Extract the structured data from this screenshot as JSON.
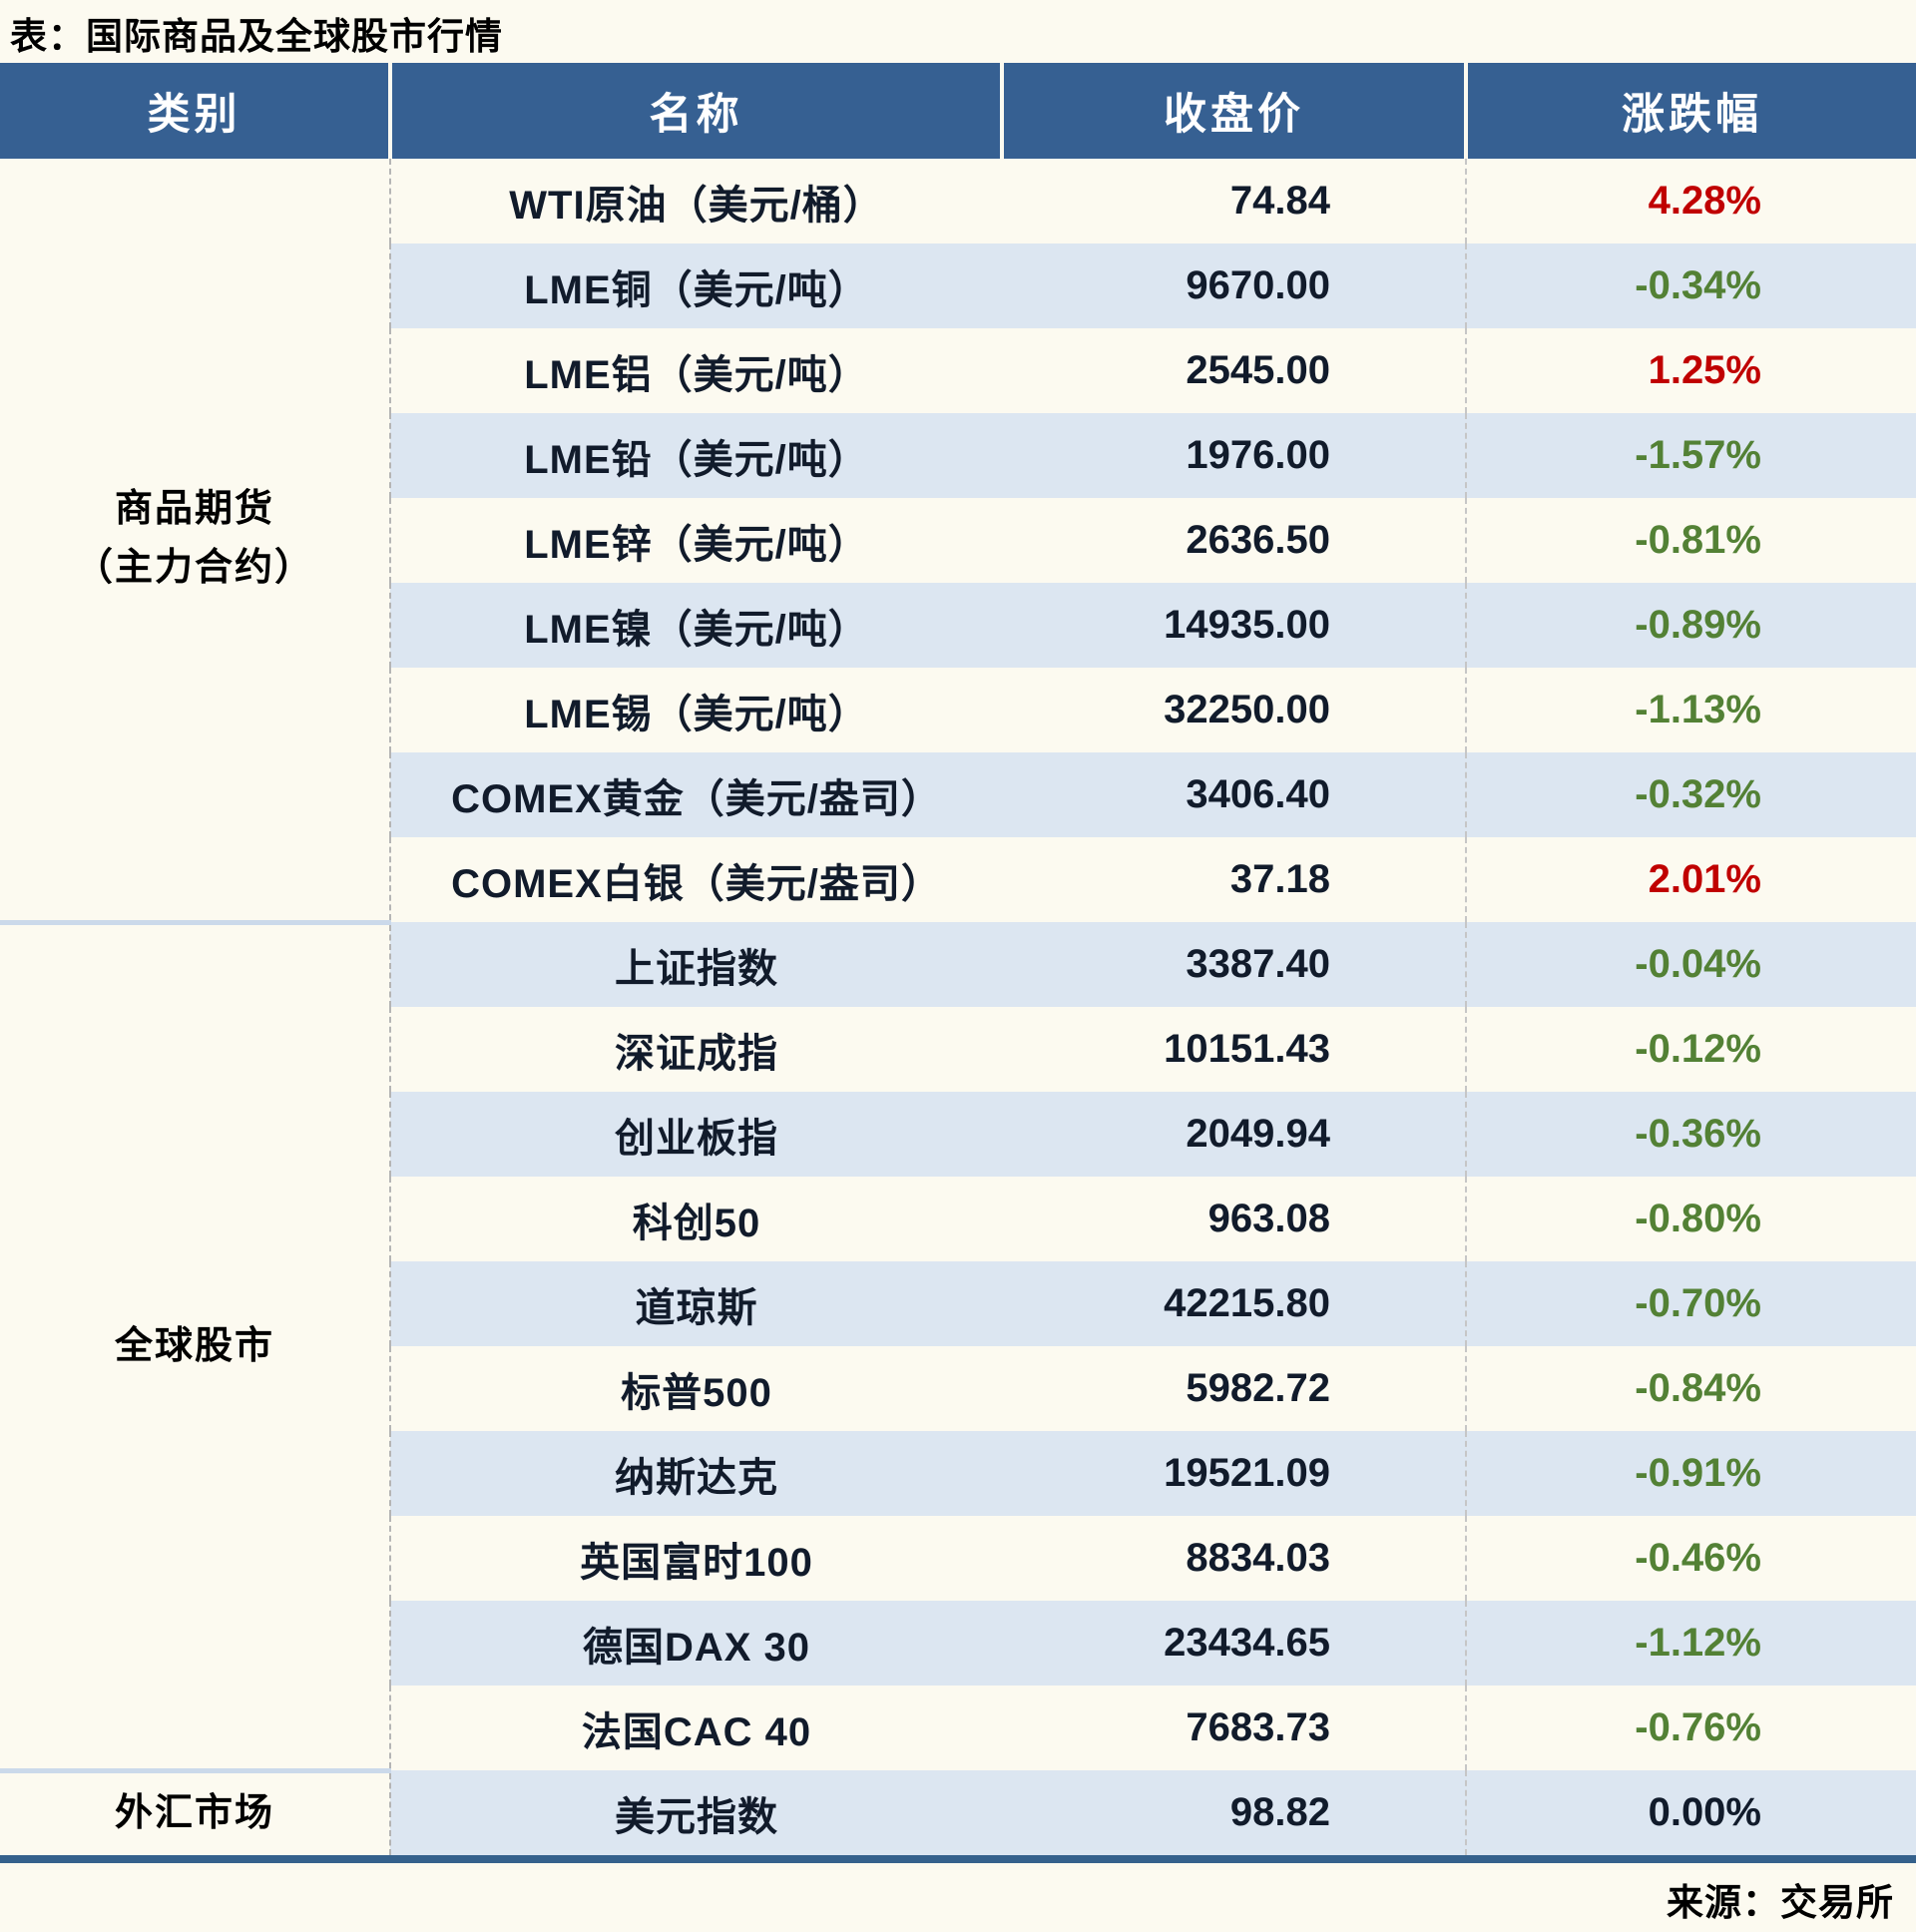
{
  "title": "表：国际商品及全球股市行情",
  "source": "来源：交易所",
  "colors": {
    "page_bg": "#FCFAF0",
    "header_bg": "#366092",
    "stripe": "#DCE6F1",
    "up": "#C00000",
    "down": "#538135",
    "flat": "#111B2B",
    "bottom_bar": "#35618C"
  },
  "table": {
    "headers": [
      "类别",
      "名称",
      "收盘价",
      "涨跌幅"
    ],
    "sections": [
      {
        "category": "商品期货（主力合约）",
        "category_lines": [
          "商品期货",
          "（主力合约）"
        ],
        "divider": false,
        "rows": [
          {
            "name": "WTI原油（美元/桶）",
            "close": "74.84",
            "change": "4.28%",
            "direction": "up"
          },
          {
            "name": "LME铜（美元/吨）",
            "close": "9670.00",
            "change": "-0.34%",
            "direction": "down"
          },
          {
            "name": "LME铝（美元/吨）",
            "close": "2545.00",
            "change": "1.25%",
            "direction": "up"
          },
          {
            "name": "LME铅（美元/吨）",
            "close": "1976.00",
            "change": "-1.57%",
            "direction": "down"
          },
          {
            "name": "LME锌（美元/吨）",
            "close": "2636.50",
            "change": "-0.81%",
            "direction": "down"
          },
          {
            "name": "LME镍（美元/吨）",
            "close": "14935.00",
            "change": "-0.89%",
            "direction": "down"
          },
          {
            "name": "LME锡（美元/吨）",
            "close": "32250.00",
            "change": "-1.13%",
            "direction": "down"
          },
          {
            "name": "COMEX黄金（美元/盎司）",
            "close": "3406.40",
            "change": "-0.32%",
            "direction": "down"
          },
          {
            "name": "COMEX白银（美元/盎司）",
            "close": "37.18",
            "change": "2.01%",
            "direction": "up"
          }
        ]
      },
      {
        "category": "全球股市",
        "category_lines": [
          "全球股市"
        ],
        "divider": true,
        "rows": [
          {
            "name": "上证指数",
            "close": "3387.40",
            "change": "-0.04%",
            "direction": "down"
          },
          {
            "name": "深证成指",
            "close": "10151.43",
            "change": "-0.12%",
            "direction": "down"
          },
          {
            "name": "创业板指",
            "close": "2049.94",
            "change": "-0.36%",
            "direction": "down"
          },
          {
            "name": "科创50",
            "close": "963.08",
            "change": "-0.80%",
            "direction": "down"
          },
          {
            "name": "道琼斯",
            "close": "42215.80",
            "change": "-0.70%",
            "direction": "down"
          },
          {
            "name": "标普500",
            "close": "5982.72",
            "change": "-0.84%",
            "direction": "down"
          },
          {
            "name": "纳斯达克",
            "close": "19521.09",
            "change": "-0.91%",
            "direction": "down"
          },
          {
            "name": "英国富时100",
            "close": "8834.03",
            "change": "-0.46%",
            "direction": "down"
          },
          {
            "name": "德国DAX 30",
            "close": "23434.65",
            "change": "-1.12%",
            "direction": "down"
          },
          {
            "name": "法国CAC 40",
            "close": "7683.73",
            "change": "-0.76%",
            "direction": "down"
          }
        ]
      },
      {
        "category": "外汇市场",
        "category_lines": [
          "外汇市场"
        ],
        "divider": true,
        "rows": [
          {
            "name": "美元指数",
            "close": "98.82",
            "change": "0.00%",
            "direction": "flat"
          }
        ]
      }
    ]
  },
  "chart_data": {
    "type": "table",
    "title": "表：国际商品及全球股市行情",
    "columns": [
      "类别",
      "名称",
      "收盘价",
      "涨跌幅"
    ],
    "rows": [
      [
        "商品期货（主力合约）",
        "WTI原油（美元/桶）",
        74.84,
        "4.28%"
      ],
      [
        "商品期货（主力合约）",
        "LME铜（美元/吨）",
        9670.0,
        "-0.34%"
      ],
      [
        "商品期货（主力合约）",
        "LME铝（美元/吨）",
        2545.0,
        "1.25%"
      ],
      [
        "商品期货（主力合约）",
        "LME铅（美元/吨）",
        1976.0,
        "-1.57%"
      ],
      [
        "商品期货（主力合约）",
        "LME锌（美元/吨）",
        2636.5,
        "-0.81%"
      ],
      [
        "商品期货（主力合约）",
        "LME镍（美元/吨）",
        14935.0,
        "-0.89%"
      ],
      [
        "商品期货（主力合约）",
        "LME锡（美元/吨）",
        32250.0,
        "-1.13%"
      ],
      [
        "商品期货（主力合约）",
        "COMEX黄金（美元/盎司）",
        3406.4,
        "-0.32%"
      ],
      [
        "商品期货（主力合约）",
        "COMEX白银（美元/盎司）",
        37.18,
        "2.01%"
      ],
      [
        "全球股市",
        "上证指数",
        3387.4,
        "-0.04%"
      ],
      [
        "全球股市",
        "深证成指",
        10151.43,
        "-0.12%"
      ],
      [
        "全球股市",
        "创业板指",
        2049.94,
        "-0.36%"
      ],
      [
        "全球股市",
        "科创50",
        963.08,
        "-0.80%"
      ],
      [
        "全球股市",
        "道琼斯",
        42215.8,
        "-0.70%"
      ],
      [
        "全球股市",
        "标普500",
        5982.72,
        "-0.84%"
      ],
      [
        "全球股市",
        "纳斯达克",
        19521.09,
        "-0.91%"
      ],
      [
        "全球股市",
        "英国富时100",
        8834.03,
        "-0.46%"
      ],
      [
        "全球股市",
        "德国DAX 30",
        23434.65,
        "-1.12%"
      ],
      [
        "全球股市",
        "法国CAC 40",
        7683.73,
        "-0.76%"
      ],
      [
        "外汇市场",
        "美元指数",
        98.82,
        "0.00%"
      ]
    ],
    "source": "来源：交易所",
    "color_coding": {
      "positive": "red",
      "negative": "green",
      "zero": "black"
    }
  }
}
